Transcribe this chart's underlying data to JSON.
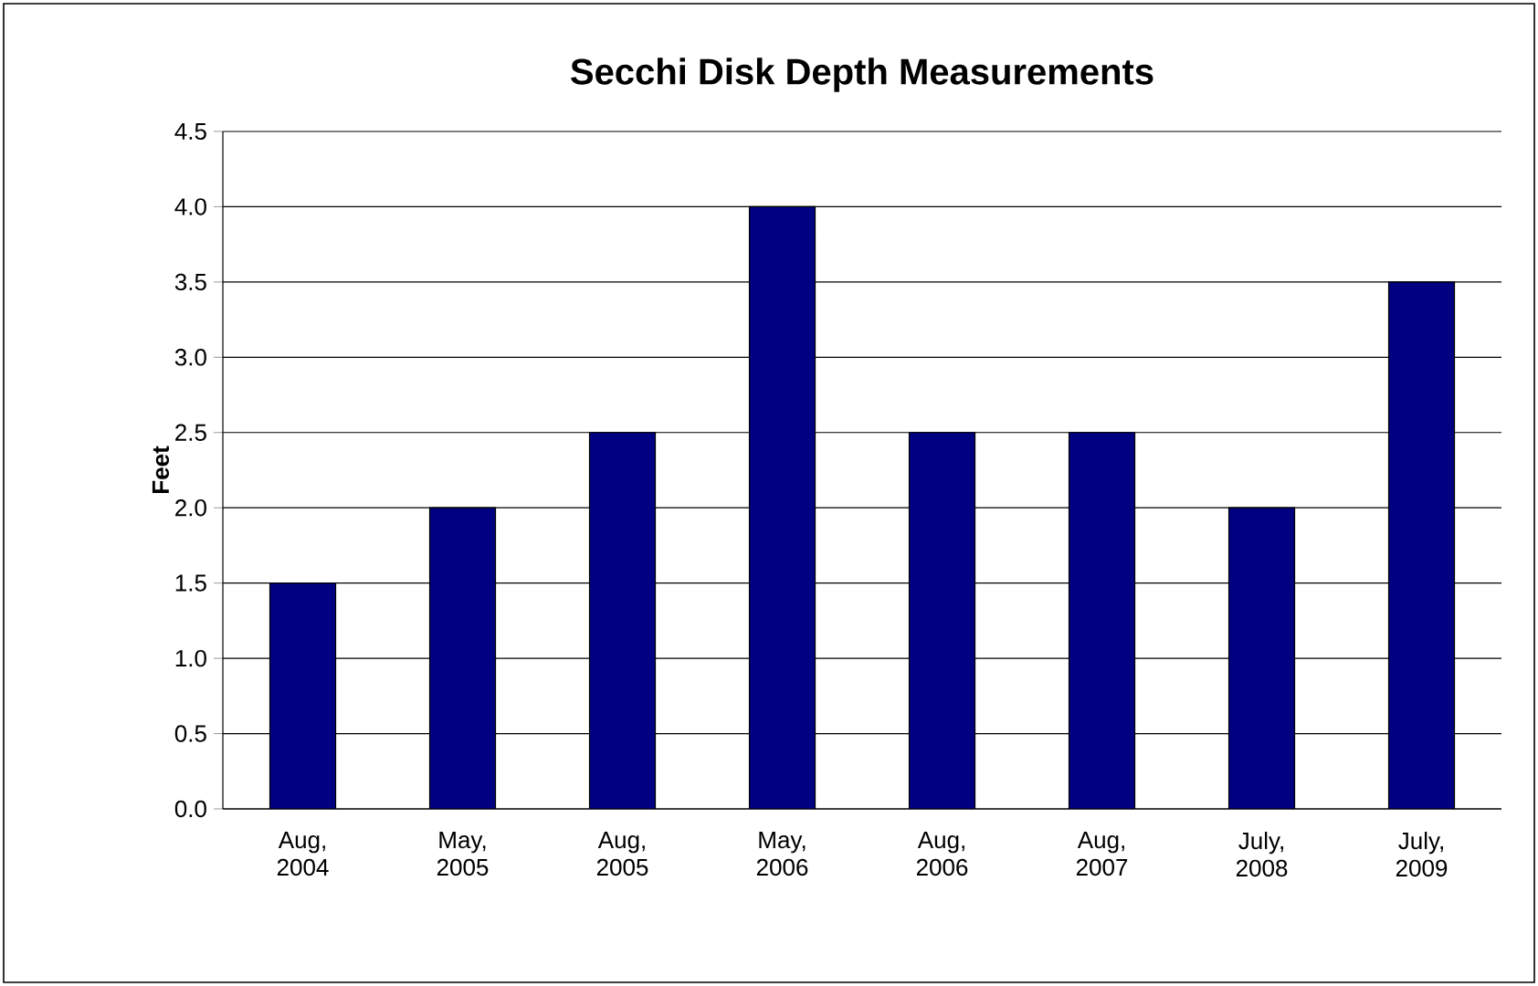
{
  "chart_data": {
    "type": "bar",
    "title": "Secchi Disk Depth Measurements",
    "ylabel": "Feet",
    "categories": [
      "Aug, 2004",
      "May, 2005",
      "Aug, 2005",
      "May, 2006",
      "Aug, 2006",
      "Aug, 2007",
      "July, 2008",
      "July, 2009"
    ],
    "values": [
      1.5,
      2.0,
      2.5,
      4.0,
      2.5,
      2.5,
      2.0,
      3.5
    ],
    "color": "#000080",
    "ylim": [
      0,
      4.5
    ],
    "yticks": [
      {
        "value": 0,
        "label": "0.0"
      },
      {
        "value": 0.5,
        "label": "0.5"
      },
      {
        "value": 1,
        "label": "1.0"
      },
      {
        "value": 1.5,
        "label": "1.5"
      },
      {
        "value": 2,
        "label": "2.0"
      },
      {
        "value": 2.5,
        "label": "2.5"
      },
      {
        "value": 3,
        "label": "3.0"
      },
      {
        "value": 3.5,
        "label": "3.5"
      },
      {
        "value": 4,
        "label": "4.0"
      },
      {
        "value": 4.5,
        "label": "4.5"
      }
    ],
    "grid": "y"
  }
}
